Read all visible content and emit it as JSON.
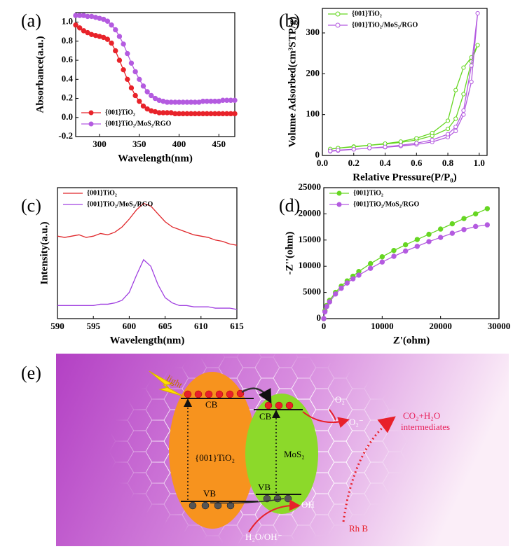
{
  "chart_data": [
    {
      "type": "line",
      "panel_label": "(a)",
      "x_label": "Wavelength(nm)",
      "y_label": "Absorbance(a.u.)",
      "x": [
        270,
        275,
        280,
        285,
        290,
        295,
        300,
        305,
        310,
        315,
        320,
        325,
        330,
        335,
        340,
        345,
        350,
        355,
        360,
        365,
        370,
        375,
        380,
        385,
        390,
        395,
        400,
        405,
        410,
        415,
        420,
        425,
        430,
        435,
        440,
        445,
        450,
        455,
        460,
        465,
        470
      ],
      "series": [
        {
          "name": "{001}TiO₂",
          "color": "#e8232a",
          "values": [
            0.97,
            0.94,
            0.91,
            0.89,
            0.87,
            0.86,
            0.85,
            0.84,
            0.82,
            0.78,
            0.7,
            0.6,
            0.5,
            0.4,
            0.31,
            0.23,
            0.17,
            0.12,
            0.09,
            0.07,
            0.06,
            0.05,
            0.05,
            0.05,
            0.05,
            0.04,
            0.04,
            0.04,
            0.04,
            0.04,
            0.04,
            0.04,
            0.04,
            0.04,
            0.04,
            0.04,
            0.04,
            0.04,
            0.04,
            0.04,
            0.04
          ]
        },
        {
          "name": "{001}TiO₂/MoS₂/RGO",
          "color": "#b45be0",
          "values": [
            1.07,
            1.07,
            1.07,
            1.06,
            1.06,
            1.05,
            1.04,
            1.03,
            1.01,
            0.97,
            0.92,
            0.85,
            0.77,
            0.67,
            0.57,
            0.48,
            0.4,
            0.33,
            0.27,
            0.23,
            0.2,
            0.18,
            0.17,
            0.16,
            0.16,
            0.16,
            0.16,
            0.16,
            0.16,
            0.16,
            0.16,
            0.16,
            0.17,
            0.17,
            0.17,
            0.17,
            0.17,
            0.18,
            0.18,
            0.18,
            0.18
          ]
        }
      ],
      "xlim": [
        270,
        470
      ],
      "xticks": [
        300,
        350,
        400,
        450
      ],
      "ylim": [
        -0.2,
        1.1
      ],
      "yticks": [
        -0.2,
        {
          "value": 0,
          "label": "0.0"
        },
        0.2,
        0.4,
        0.6,
        0.8,
        {
          "value": 1,
          "label": "1.0"
        }
      ],
      "marker": "circle",
      "legend": "lower left"
    },
    {
      "type": "line",
      "panel_label": "(b)",
      "x_label": "Relative Pressure(P/P₀)",
      "y_label": "Volume Adsorbed(cm³STP/g)",
      "x": [
        0.05,
        0.1,
        0.2,
        0.3,
        0.4,
        0.5,
        0.6,
        0.7,
        0.8,
        0.85,
        0.9,
        0.95,
        0.99,
        0.95,
        0.9,
        0.85,
        0.8,
        0.7,
        0.6,
        0.5,
        0.4,
        0.3,
        0.2,
        0.1,
        0.05
      ],
      "series": [
        {
          "name": "{001}TiO₂",
          "color": "#66d622",
          "values": [
            15,
            18,
            22,
            25,
            28,
            32,
            38,
            48,
            65,
            90,
            150,
            230,
            270,
            240,
            215,
            160,
            85,
            55,
            42,
            34,
            29,
            25,
            21,
            18,
            16
          ]
        },
        {
          "name": "{001}TiO₂/MoS₂/RGO",
          "color": "#b45be0",
          "values": [
            10,
            12,
            15,
            18,
            20,
            23,
            27,
            33,
            45,
            60,
            100,
            180,
            348,
            220,
            110,
            70,
            52,
            38,
            30,
            25,
            21,
            18,
            15,
            13,
            11
          ]
        }
      ],
      "xlim": [
        0,
        1.05
      ],
      "xticks": [
        {
          "value": 0,
          "label": "0.0"
        },
        0.2,
        0.4,
        0.6,
        0.8,
        {
          "value": 1,
          "label": "1.0"
        }
      ],
      "ylim": [
        0,
        360
      ],
      "yticks": [
        0,
        100,
        200,
        300
      ],
      "marker": "hollow-circle",
      "legend": "upper left"
    },
    {
      "type": "line",
      "panel_label": "(c)",
      "x_label": "Wavelength(nm)",
      "y_label": "Intensity(a.u.)",
      "x": [
        590,
        591,
        592,
        593,
        594,
        595,
        596,
        597,
        598,
        599,
        600,
        601,
        602,
        603,
        604,
        605,
        606,
        607,
        608,
        609,
        610,
        611,
        612,
        613,
        614,
        615
      ],
      "series": [
        {
          "name": "{001}TiO₂",
          "color": "#e0262a",
          "values": [
            63,
            62,
            63,
            64,
            62,
            63,
            65,
            64,
            66,
            70,
            76,
            83,
            88,
            86,
            80,
            74,
            70,
            68,
            66,
            64,
            63,
            62,
            60,
            59,
            57,
            56
          ]
        },
        {
          "name": "{001}TiO₂/MoS₂/RGO",
          "color": "#a040e0",
          "values": [
            10,
            10,
            10,
            10,
            10,
            10,
            11,
            11,
            12,
            14,
            20,
            33,
            45,
            40,
            26,
            16,
            12,
            10,
            10,
            9,
            9,
            9,
            8,
            8,
            8,
            7
          ]
        }
      ],
      "xlim": [
        590,
        615
      ],
      "xticks": [
        590,
        595,
        600,
        605,
        610,
        615
      ],
      "ylim": [
        0,
        100
      ],
      "legend": "upper left"
    },
    {
      "type": "line",
      "panel_label": "(d)",
      "x_label": "Z'(ohm)",
      "y_label": "-Z''(ohm)",
      "x": [
        0,
        200,
        500,
        1000,
        2000,
        3000,
        4000,
        5000,
        6000,
        8000,
        10000,
        12000,
        14000,
        16000,
        18000,
        20000,
        22000,
        24000,
        26000,
        28000
      ],
      "series": [
        {
          "name": "{001}TiO₂",
          "color": "#66d622",
          "values": [
            0,
            1500,
            2500,
            3500,
            5000,
            6200,
            7200,
            8100,
            9000,
            10500,
            11800,
            13000,
            14100,
            15100,
            16100,
            17100,
            18100,
            19100,
            20000,
            21000
          ]
        },
        {
          "name": "{001}TiO₂/MoS₂/RGO",
          "color": "#b45be0",
          "values": [
            0,
            1300,
            2300,
            3200,
            4700,
            5800,
            6800,
            7600,
            8300,
            9600,
            10800,
            11900,
            12900,
            13800,
            14700,
            15500,
            16300,
            17000,
            17600,
            17900
          ]
        }
      ],
      "xlim": [
        0,
        30000
      ],
      "xticks": [
        0,
        10000,
        20000,
        30000
      ],
      "ylim": [
        0,
        25000
      ],
      "yticks": [
        0,
        5000,
        10000,
        15000,
        20000,
        25000
      ],
      "marker": "circle",
      "legend": "upper left"
    }
  ],
  "diagram": {
    "label": "(e)",
    "light": "light",
    "tio2_cb": "CB",
    "tio2_vb": "VB",
    "tio2": "{001}TiO₂",
    "mos2_cb": "CB",
    "mos2_vb": "VB",
    "mos2": "MoS₂",
    "o2": "O₂",
    "o2_radical": "O₂⁻",
    "products": "CO₂+H₂O",
    "intermediates": "intermediates",
    "oh": "OH",
    "water": "H₂O/OH⁻",
    "rhb": "Rh B"
  }
}
